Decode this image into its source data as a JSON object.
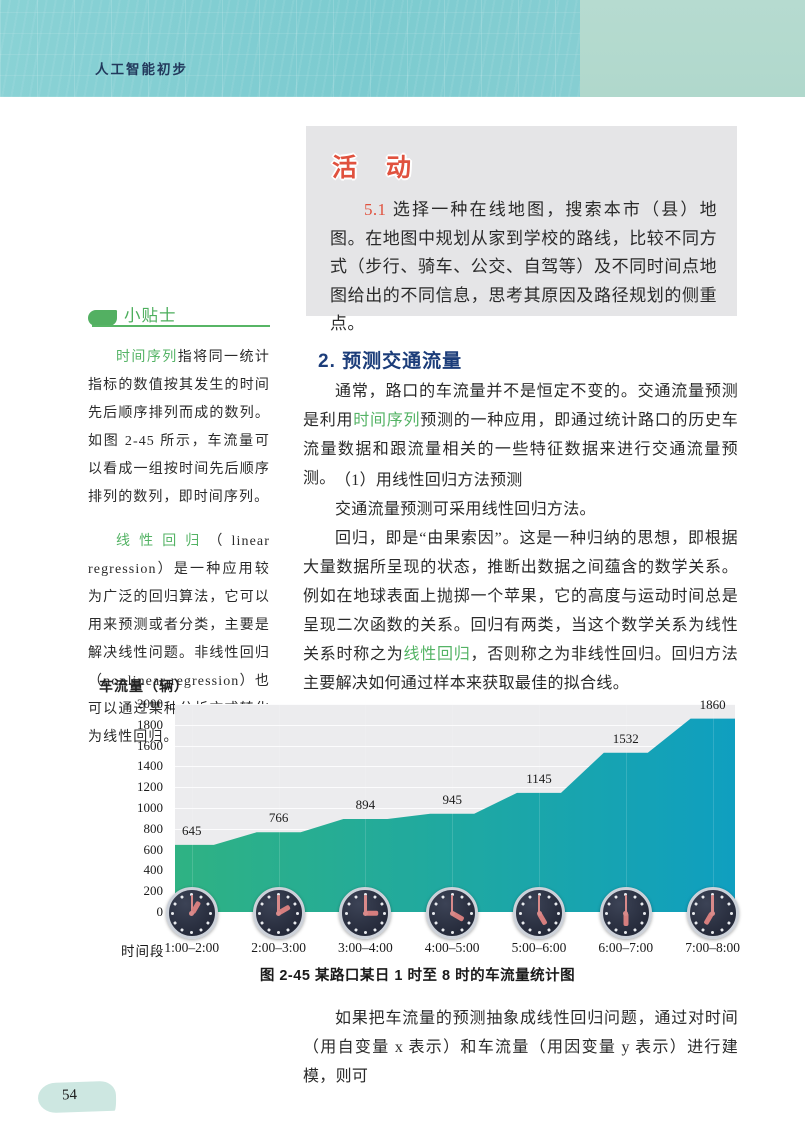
{
  "page": {
    "header_title": "人工智能初步",
    "page_number": "54"
  },
  "colors": {
    "accent_green": "#54b365",
    "accent_red": "#e0513e",
    "heading_navy": "#1c3d7a",
    "header_teal": "#7ccbd0",
    "header_side_panel": "#b4dacd",
    "activity_box_bg": "#e5e5e7"
  },
  "activity": {
    "title": "活　动",
    "body": [
      {
        "t": "5.1",
        "c": "#e0513e"
      },
      {
        "t": " 选择一种在线地图，搜索本市（县）地图。在地图中规划从家到学校的路线，比较不同方式（步行、骑车、公交、自驾等）及不同时间点地图给出的不同信息，思考其原因及路径规划的侧重点。"
      }
    ]
  },
  "tips": {
    "title": "小贴士",
    "para1": [
      {
        "t": "时间序列",
        "c": "#54b365"
      },
      {
        "t": "指将同一统计指标的数值按其发生的时间先后顺序排列而成的数列。如图 2-45 所示，车流量可以看成一组按时间先后顺序排列的数列，即时间序列。"
      }
    ],
    "para2": [
      {
        "t": "线性回归",
        "c": "#54b365"
      },
      {
        "t": "（linear regression）是一种应用较为广泛的回归算法，它可以用来预测或者分类，主要是解决线性问题。非线性回归（nonlinear regression）也可以通过某种分析方式转化为线性回归。"
      }
    ]
  },
  "main": {
    "section_heading": "2.  预测交通流量",
    "para1": [
      {
        "t": "通常，路口的车流量并不是恒定不变的。交通流量预测是利用"
      },
      {
        "t": "时间序列",
        "c": "#54b365"
      },
      {
        "t": "预测的一种应用，即通过统计路口的历史车流量数据和跟流量相关的一些特征数据来进行交通流量预测。"
      }
    ],
    "line1": "（1）用线性回归方法预测",
    "line2": "交通流量预测可采用线性回归方法。",
    "para2": [
      {
        "t": "回归，即是“由果索因”。这是一种归纳的思想，即根据大量数据所呈现的状态，推断出数据之间蕴含的数学关系。例如在地球表面上抛掷一个苹果，它的高度与运动时间总是呈现二次函数的关系。回归有两类，当这个数学关系为线性关系时称之为"
      },
      {
        "t": "线性回归",
        "c": "#54b365"
      },
      {
        "t": "，否则称之为非线性回归。回归方法主要解决如何通过样本来获取最佳的拟合线。"
      }
    ],
    "para3": "如果把车流量的预测抽象成线性回归问题，通过对时间（用自变量 x 表示）和车流量（用因变量 y 表示）进行建模，则可"
  },
  "chart_data": {
    "type": "area",
    "title": "图 2-45  某路口某日 1 时至 8 时的车流量统计图",
    "ylabel": "车流量（辆）",
    "xlabel": "时间段",
    "categories": [
      "1:00–2:00",
      "2:00–3:00",
      "3:00–4:00",
      "4:00–5:00",
      "5:00–6:00",
      "6:00–7:00",
      "7:00–8:00"
    ],
    "values": [
      645,
      766,
      894,
      945,
      1145,
      1532,
      1860
    ],
    "clock_hours": [
      1,
      2,
      3,
      4,
      5,
      6,
      7
    ],
    "ylim": [
      0,
      2000
    ],
    "ytick_step": 200,
    "grid": true,
    "legend": "none",
    "plot_bg": "#ececee",
    "area_gradient": [
      "#2fb283",
      "#0f9fc0"
    ]
  }
}
